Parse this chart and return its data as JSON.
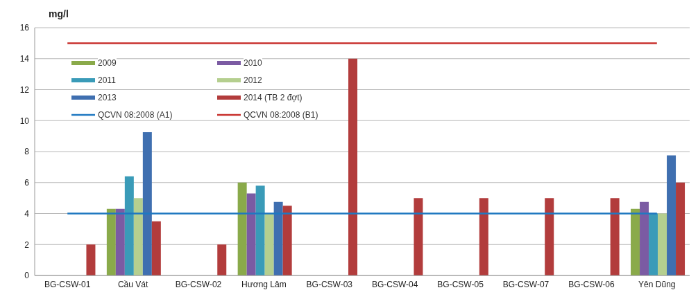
{
  "chart_data": {
    "type": "bar",
    "ylabel": "mg/l",
    "categories": [
      "BG-CSW-01",
      "Cầu Vát",
      "BG-CSW-02",
      "Hương  Lâm",
      "BG-CSW-03",
      "BG-CSW-04",
      "BG-CSW-05",
      "BG-CSW-07",
      "BG-CSW-06",
      "Yên Dũng"
    ],
    "series": [
      {
        "name": "2009",
        "color": "#8aaa4a",
        "values": [
          null,
          4.3,
          null,
          6.0,
          null,
          null,
          null,
          null,
          null,
          4.3
        ]
      },
      {
        "name": "2010",
        "color": "#7b5ba3",
        "values": [
          null,
          4.3,
          null,
          5.3,
          null,
          null,
          null,
          null,
          null,
          4.75
        ]
      },
      {
        "name": "2011",
        "color": "#3a9bb8",
        "values": [
          null,
          6.4,
          null,
          5.8,
          null,
          null,
          null,
          null,
          null,
          4.0
        ]
      },
      {
        "name": "2012",
        "color": "#b5cf8f",
        "values": [
          null,
          5.0,
          null,
          4.0,
          null,
          null,
          null,
          null,
          null,
          4.0
        ]
      },
      {
        "name": "2013",
        "color": "#3f6fb0",
        "values": [
          null,
          9.25,
          null,
          4.75,
          null,
          null,
          null,
          null,
          null,
          7.75
        ]
      },
      {
        "name": "2014  (TB 2 đợt)",
        "color": "#b23c3c",
        "values": [
          2.0,
          3.5,
          2.0,
          4.5,
          14.0,
          5.0,
          5.0,
          5.0,
          5.0,
          6.0
        ]
      },
      {
        "type": "line",
        "name": "QCVN 08:2008 (A1)",
        "color": "#1f78c1",
        "values": [
          4,
          4,
          4,
          4,
          4,
          4,
          4,
          4,
          4,
          4
        ]
      },
      {
        "type": "line",
        "name": "QCVN 08:2008 (B1)",
        "color": "#c8302c",
        "values": [
          15,
          15,
          15,
          15,
          15,
          15,
          15,
          15,
          15,
          15
        ]
      }
    ],
    "ylim": [
      0,
      16
    ],
    "yticks": [
      0,
      2,
      4,
      6,
      8,
      10,
      12,
      14,
      16
    ],
    "grid": "y",
    "legend": "top left",
    "marker": "none"
  }
}
